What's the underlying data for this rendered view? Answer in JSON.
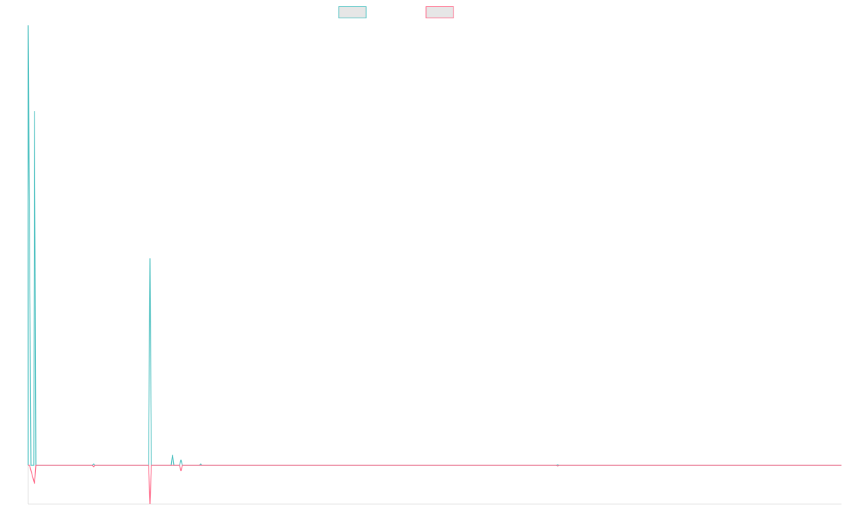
{
  "chart_data": {
    "type": "line",
    "title": "",
    "xlabel": "",
    "ylabel": "",
    "grid": false,
    "legend_position": "top-center",
    "xlim": [
      0,
      1155
    ],
    "ylim": [
      -55,
      625
    ],
    "series": [
      {
        "color": "#4bc0c0",
        "legend_fill": "#e6e6e6",
        "points": [
          [
            0,
            0
          ],
          [
            0,
            625
          ],
          [
            4,
            0
          ],
          [
            8,
            0
          ],
          [
            9,
            503
          ],
          [
            11,
            0
          ],
          [
            91,
            0
          ],
          [
            93,
            2
          ],
          [
            95,
            0
          ],
          [
            171,
            0
          ],
          [
            173,
            294
          ],
          [
            175,
            0
          ],
          [
            203,
            0
          ],
          [
            205,
            15
          ],
          [
            207,
            0
          ],
          [
            215,
            0
          ],
          [
            217,
            8
          ],
          [
            219,
            0
          ],
          [
            243,
            0
          ],
          [
            245,
            2
          ],
          [
            247,
            0
          ],
          [
            750,
            0
          ],
          [
            752,
            1
          ],
          [
            754,
            0
          ],
          [
            1155,
            0
          ]
        ]
      },
      {
        "color": "#ff6384",
        "legend_fill": "#e6e6e6",
        "points": [
          [
            0,
            0
          ],
          [
            2,
            0
          ],
          [
            9,
            -26
          ],
          [
            11,
            0
          ],
          [
            91,
            0
          ],
          [
            93,
            -2
          ],
          [
            95,
            0
          ],
          [
            171,
            0
          ],
          [
            173,
            -55
          ],
          [
            175,
            0
          ],
          [
            215,
            0
          ],
          [
            217,
            -8
          ],
          [
            219,
            0
          ],
          [
            750,
            0
          ],
          [
            752,
            -1
          ],
          [
            754,
            0
          ],
          [
            1155,
            0
          ]
        ]
      }
    ]
  }
}
